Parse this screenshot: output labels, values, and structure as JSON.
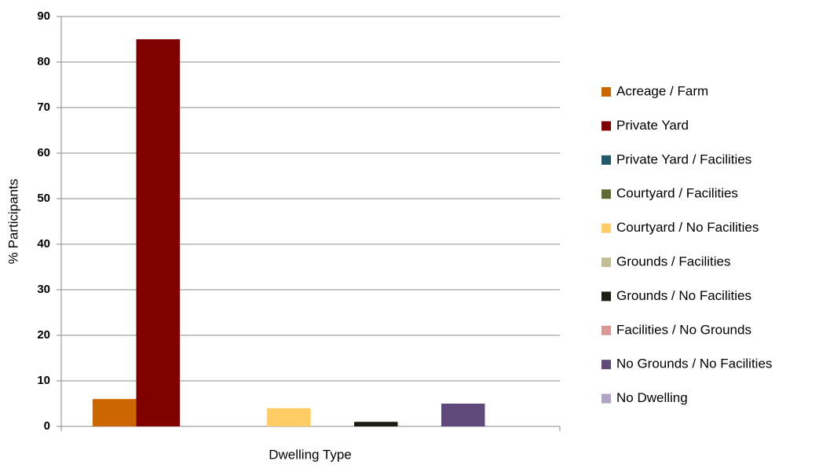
{
  "chart_data": {
    "type": "bar",
    "xlabel": "Dwelling Type",
    "ylabel": "% Participants",
    "categories": [
      null
    ],
    "series": [
      {
        "name": "Acreage / Farm",
        "color": "#cc6600",
        "values": [
          6
        ]
      },
      {
        "name": "Private Yard",
        "color": "#800000",
        "values": [
          85
        ]
      },
      {
        "name": "Private Yard / Facilities",
        "color": "#215968",
        "values": [
          0
        ]
      },
      {
        "name": "Courtyard / Facilities",
        "color": "#5f6a35",
        "values": [
          0
        ]
      },
      {
        "name": "Courtyard / No Facilities",
        "color": "#ffcc66",
        "values": [
          4
        ]
      },
      {
        "name": "Grounds / Facilities",
        "color": "#c4bd97",
        "values": [
          0
        ]
      },
      {
        "name": "Grounds / No Facilities",
        "color": "#1d1d14",
        "values": [
          1
        ]
      },
      {
        "name": "Facilities / No Grounds",
        "color": "#d99694",
        "values": [
          0
        ]
      },
      {
        "name": "No Grounds / No Facilities",
        "color": "#604a7b",
        "values": [
          5
        ]
      },
      {
        "name": "No Dwelling",
        "color": "#b3a2c7",
        "values": [
          0
        ]
      }
    ],
    "ylim": [
      0,
      90
    ],
    "yticks": [
      0,
      10,
      20,
      30,
      40,
      50,
      60,
      70,
      80,
      90
    ],
    "grid": true,
    "legend": "right"
  }
}
